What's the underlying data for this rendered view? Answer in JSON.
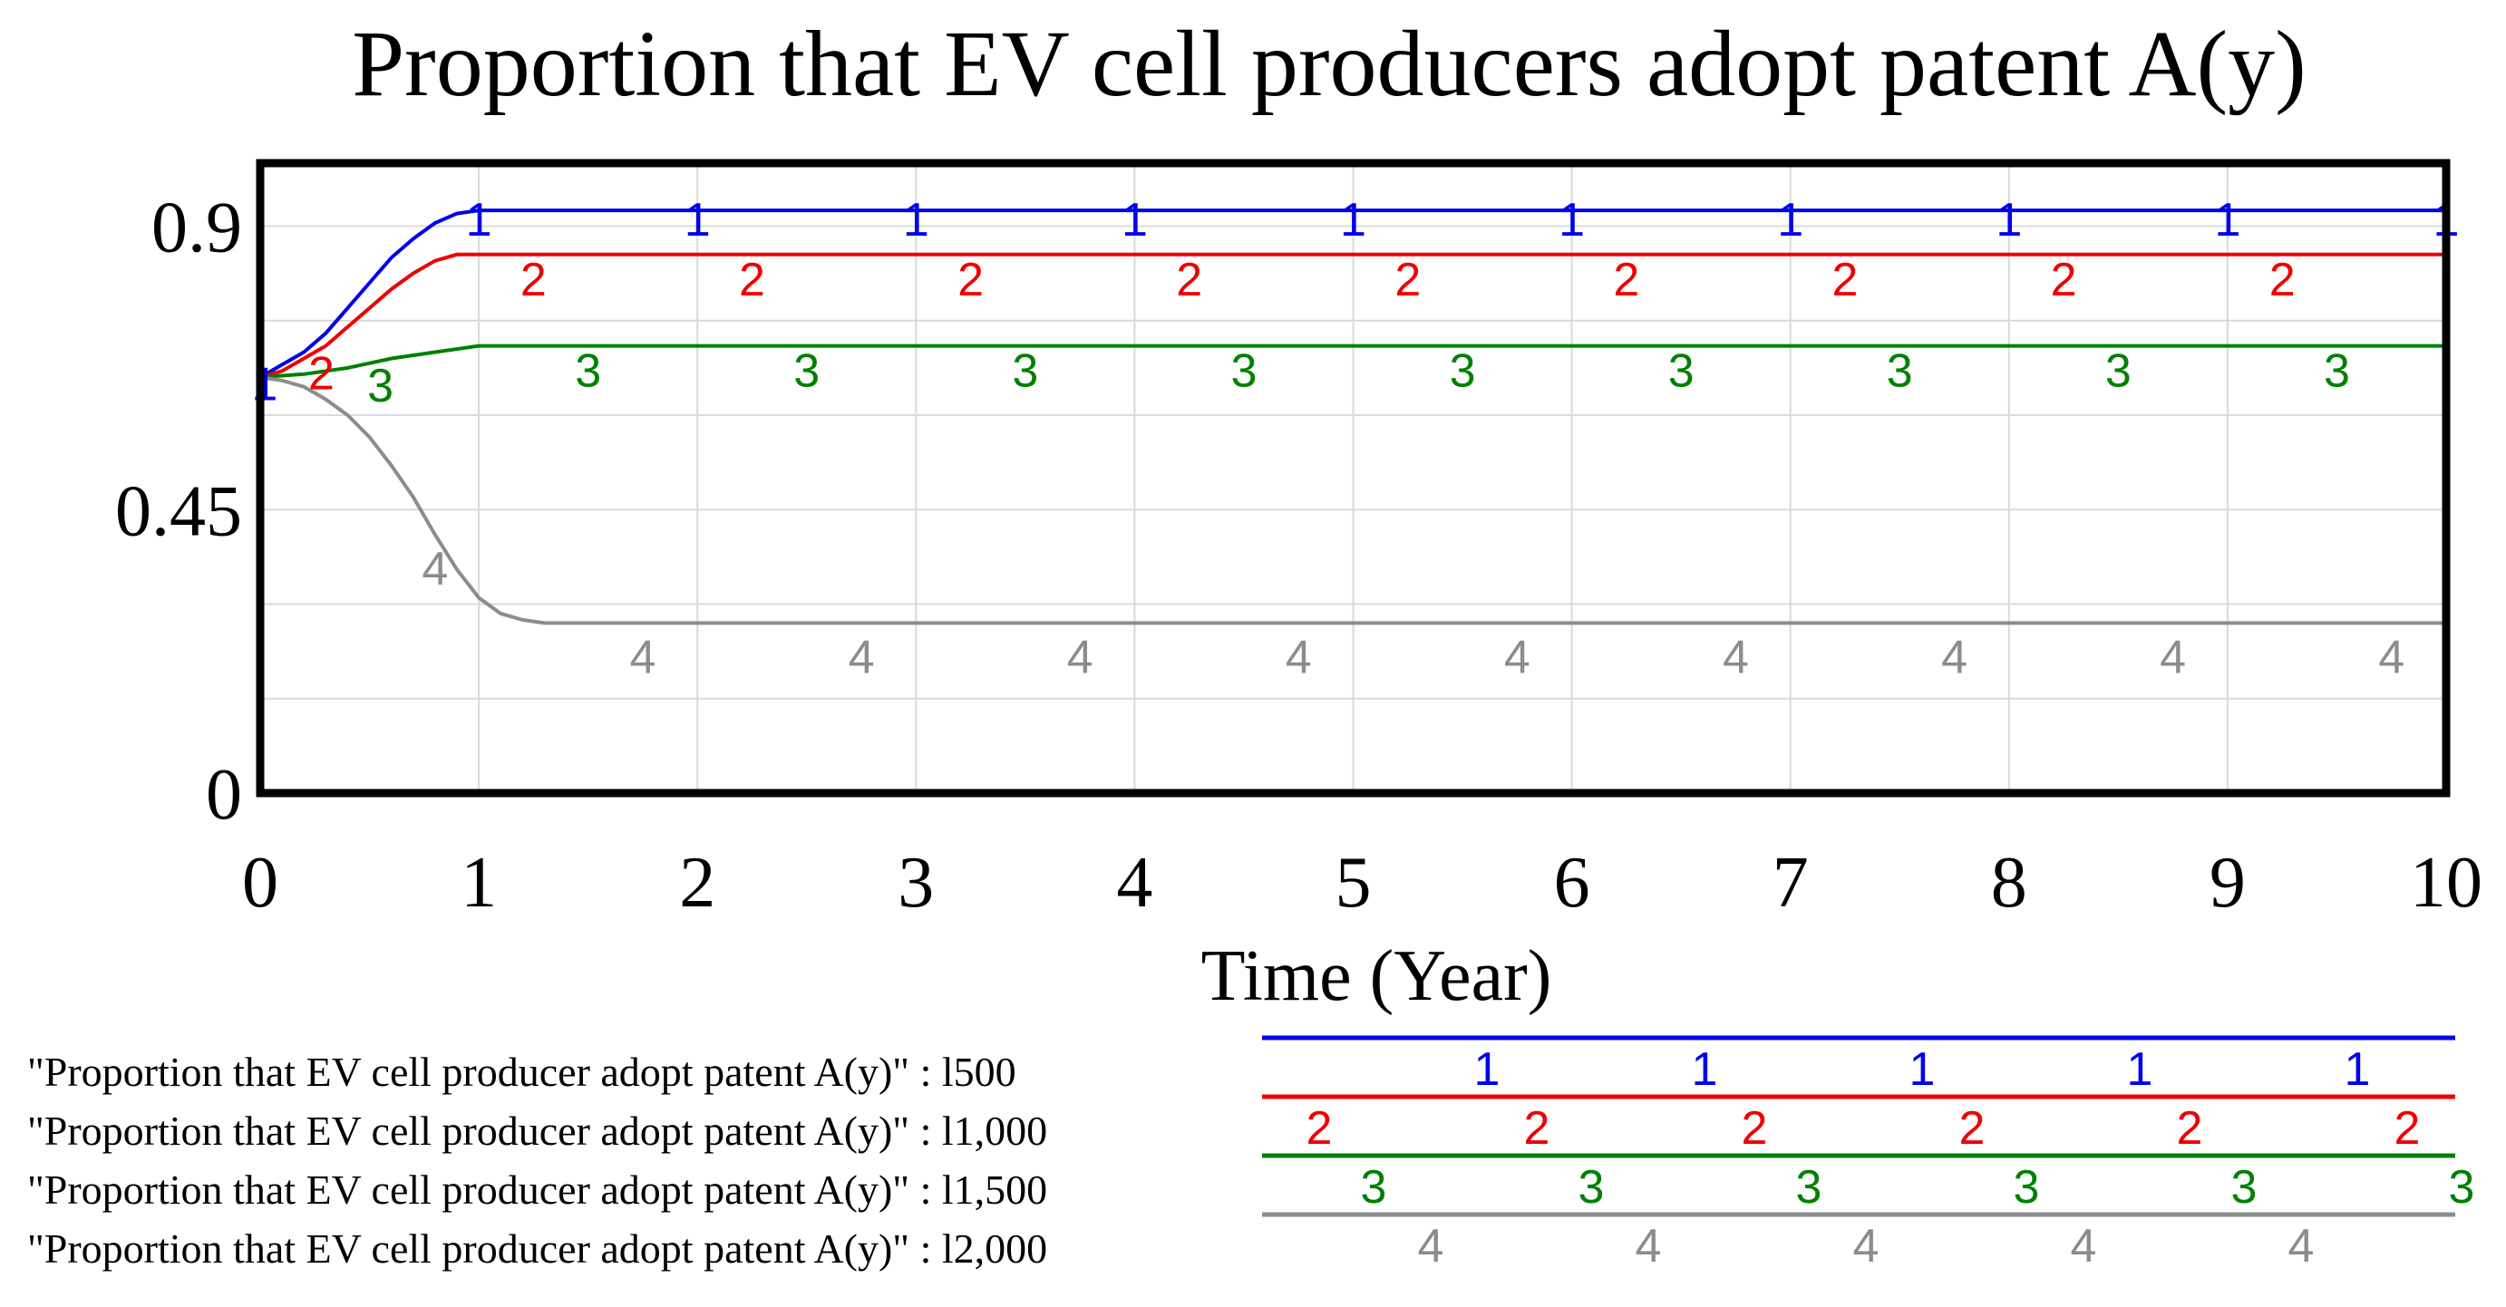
{
  "chart_data": {
    "type": "line",
    "title": "Proportion that EV cell producers adopt patent A(y)",
    "xlabel": "Time (Year)",
    "ylabel": "",
    "xlim": [
      0,
      10
    ],
    "ylim": [
      0,
      1.0
    ],
    "x_ticks": [
      "0",
      "1",
      "2",
      "3",
      "4",
      "5",
      "6",
      "7",
      "8",
      "9",
      "10"
    ],
    "y_ticks": [
      {
        "value": 0,
        "label": "0"
      },
      {
        "value": 0.45,
        "label": "0.45"
      },
      {
        "value": 0.9,
        "label": "0.9"
      }
    ],
    "grid": true,
    "series": [
      {
        "name": "\"Proportion that EV cell producer adopt patent A(y)\" : l500",
        "marker": "1",
        "color": "#0000ee",
        "x": [
          0,
          0.1,
          0.2,
          0.3,
          0.4,
          0.5,
          0.6,
          0.7,
          0.8,
          0.9,
          1.0,
          10
        ],
        "y": [
          0.66,
          0.68,
          0.7,
          0.73,
          0.77,
          0.81,
          0.85,
          0.88,
          0.905,
          0.92,
          0.925,
          0.925
        ]
      },
      {
        "name": "\"Proportion that EV cell producer adopt patent A(y)\" : l1,000",
        "marker": "2",
        "color": "#ee0000",
        "x": [
          0,
          0.1,
          0.2,
          0.3,
          0.4,
          0.5,
          0.6,
          0.7,
          0.8,
          0.9,
          1.0,
          10
        ],
        "y": [
          0.66,
          0.67,
          0.69,
          0.71,
          0.74,
          0.77,
          0.8,
          0.825,
          0.845,
          0.855,
          0.855,
          0.855
        ]
      },
      {
        "name": "\"Proportion that EV cell producer adopt patent A(y)\" : l1,500",
        "marker": "3",
        "color": "#008000",
        "x": [
          0,
          0.2,
          0.4,
          0.6,
          0.8,
          1.0,
          10
        ],
        "y": [
          0.66,
          0.665,
          0.675,
          0.69,
          0.7,
          0.71,
          0.71
        ]
      },
      {
        "name": "\"Proportion that EV cell producer adopt patent A(y)\" : l2,000",
        "marker": "4",
        "color": "#8c8c8c",
        "x": [
          0,
          0.1,
          0.2,
          0.3,
          0.4,
          0.5,
          0.6,
          0.7,
          0.8,
          0.9,
          1.0,
          1.1,
          1.2,
          1.3,
          10
        ],
        "y": [
          0.66,
          0.655,
          0.645,
          0.625,
          0.6,
          0.565,
          0.52,
          0.47,
          0.41,
          0.355,
          0.31,
          0.285,
          0.275,
          0.27,
          0.27
        ]
      }
    ],
    "legend_placement": "bottom"
  }
}
